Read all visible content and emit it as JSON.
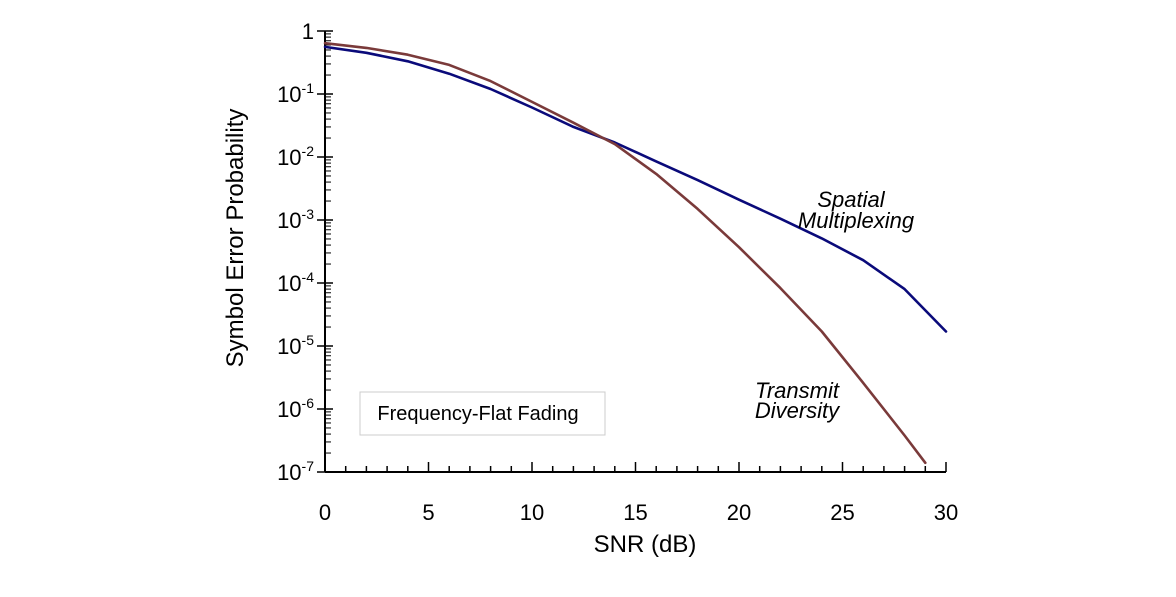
{
  "chart_data": {
    "type": "line",
    "title": "",
    "xlabel": "SNR (dB)",
    "ylabel": "Symbol Error Probability",
    "xlim": [
      0,
      30
    ],
    "ylim": [
      1e-07,
      1
    ],
    "y_scale": "log",
    "grid": false,
    "x_ticks": [
      "0",
      "5",
      "10",
      "15",
      "20",
      "25",
      "30"
    ],
    "y_ticks": [
      {
        "base": "1",
        "exp": ""
      },
      {
        "base": "10",
        "exp": "-1"
      },
      {
        "base": "10",
        "exp": "-2"
      },
      {
        "base": "10",
        "exp": "-3"
      },
      {
        "base": "10",
        "exp": "-4"
      },
      {
        "base": "10",
        "exp": "-5"
      },
      {
        "base": "10",
        "exp": "-6"
      },
      {
        "base": "10",
        "exp": "-7"
      }
    ],
    "series": [
      {
        "name": "Spatial Multiplexing",
        "color": "#0a0a7a",
        "x": [
          0,
          2,
          4,
          6,
          8,
          10,
          12,
          14,
          16,
          18,
          20,
          22,
          24,
          26,
          28,
          30
        ],
        "y": [
          0.56,
          0.45,
          0.33,
          0.21,
          0.12,
          0.061,
          0.03,
          0.017,
          0.0085,
          0.0043,
          0.0021,
          0.00105,
          0.00051,
          0.00023,
          8e-05,
          1.7e-05
        ]
      },
      {
        "name": "Transmit Diversity",
        "color": "#7a3a3a",
        "x": [
          0,
          2,
          4,
          6,
          8,
          10,
          12,
          14,
          16,
          18,
          20,
          22,
          24,
          26,
          28,
          29
        ],
        "y": [
          0.64,
          0.54,
          0.42,
          0.29,
          0.16,
          0.075,
          0.035,
          0.016,
          0.0054,
          0.0015,
          0.00037,
          8.3e-05,
          1.7e-05,
          2.6e-06,
          3.8e-07,
          1.4e-07
        ]
      }
    ],
    "annotations": [
      {
        "line1": "Spatial",
        "line2": "Multiplexing"
      },
      {
        "line1": "Transmit",
        "line2": "Diversity"
      }
    ],
    "legend_box": "Frequency-Flat Fading"
  }
}
